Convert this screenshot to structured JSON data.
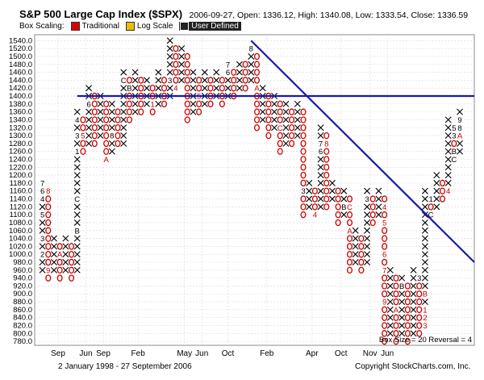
{
  "header": {
    "title": "S&P 500 Large Cap Index ($SPX)",
    "ohlc": "2006-09-27, Open: 1336.12, High: 1340.08, Low: 1333.54, Close: 1336.59"
  },
  "scaling": {
    "label": "Box Scaling:",
    "options": [
      {
        "label": "Traditional",
        "color": "#dd0000",
        "active": false
      },
      {
        "label": "Log Scale",
        "color": "#e8c000",
        "active": false
      },
      {
        "label": "User Defined",
        "color": "#222222",
        "active": true
      }
    ]
  },
  "footer": {
    "date_range": "2 January 1998 - 27 September 2006",
    "copyright": "Copyright StockCharts.com, Inc."
  },
  "chart_data": {
    "type": "point-and-figure",
    "box_info": "Box Size = 20   Reversal = 4",
    "y_ticks": [
      780,
      800,
      820,
      840,
      860,
      880,
      900,
      920,
      940,
      960,
      980,
      1000,
      1020,
      1040,
      1060,
      1080,
      1100,
      1120,
      1140,
      1160,
      1180,
      1200,
      1220,
      1240,
      1260,
      1280,
      1300,
      1320,
      1340,
      1360,
      1380,
      1400,
      1420,
      1440,
      1460,
      1480,
      1500,
      1520,
      1540
    ],
    "ylim": [
      770,
      1555
    ],
    "x_labels": [
      {
        "label": "Sep",
        "col": 2.7
      },
      {
        "label": "Jun",
        "col": 7.5
      },
      {
        "label": "Sep",
        "col": 10.5
      },
      {
        "label": "Feb",
        "col": 16.5
      },
      {
        "label": "May",
        "col": 24.5
      },
      {
        "label": "Jun",
        "col": 27.5
      },
      {
        "label": "Oct",
        "col": 32
      },
      {
        "label": "Feb",
        "col": 38.7
      },
      {
        "label": "Apr",
        "col": 46.5
      },
      {
        "label": "Oct",
        "col": 51.5
      },
      {
        "label": "Nov",
        "col": 56.5
      },
      {
        "label": "Jun",
        "col": 59.5
      }
    ],
    "columns": [
      {
        "type": "X",
        "low": 960,
        "high": 1180
      },
      {
        "type": "O",
        "low": 940,
        "high": 1160
      },
      {
        "type": "X",
        "low": 960,
        "high": 1040
      },
      {
        "type": "O",
        "low": 940,
        "high": 1020
      },
      {
        "type": "X",
        "low": 960,
        "high": 1040
      },
      {
        "type": "O",
        "low": 940,
        "high": 1020
      },
      {
        "type": "X",
        "low": 960,
        "high": 1360
      },
      {
        "type": "O",
        "low": 1260,
        "high": 1340
      },
      {
        "type": "X",
        "low": 1280,
        "high": 1420
      },
      {
        "type": "O",
        "low": 1280,
        "high": 1400
      },
      {
        "type": "X",
        "low": 1300,
        "high": 1400
      },
      {
        "type": "O",
        "low": 1240,
        "high": 1380
      },
      {
        "type": "X",
        "low": 1260,
        "high": 1380
      },
      {
        "type": "O",
        "low": 1280,
        "high": 1360
      },
      {
        "type": "X",
        "low": 1280,
        "high": 1460
      },
      {
        "type": "O",
        "low": 1340,
        "high": 1440
      },
      {
        "type": "X",
        "low": 1360,
        "high": 1460
      },
      {
        "type": "O",
        "low": 1360,
        "high": 1440
      },
      {
        "type": "X",
        "low": 1380,
        "high": 1440
      },
      {
        "type": "O",
        "low": 1360,
        "high": 1420
      },
      {
        "type": "X",
        "low": 1380,
        "high": 1460
      },
      {
        "type": "O",
        "low": 1380,
        "high": 1440
      },
      {
        "type": "X",
        "low": 1400,
        "high": 1540
      },
      {
        "type": "O",
        "low": 1420,
        "high": 1520
      },
      {
        "type": "X",
        "low": 1440,
        "high": 1520
      },
      {
        "type": "O",
        "low": 1340,
        "high": 1500
      },
      {
        "type": "X",
        "low": 1360,
        "high": 1460
      },
      {
        "type": "O",
        "low": 1360,
        "high": 1440
      },
      {
        "type": "X",
        "low": 1380,
        "high": 1460
      },
      {
        "type": "O",
        "low": 1380,
        "high": 1440
      },
      {
        "type": "X",
        "low": 1400,
        "high": 1460
      },
      {
        "type": "O",
        "low": 1380,
        "high": 1440
      },
      {
        "type": "X",
        "low": 1400,
        "high": 1480
      },
      {
        "type": "O",
        "low": 1400,
        "high": 1460
      },
      {
        "type": "X",
        "low": 1420,
        "high": 1480
      },
      {
        "type": "O",
        "low": 1420,
        "high": 1480
      },
      {
        "type": "X",
        "low": 1440,
        "high": 1520
      },
      {
        "type": "O",
        "low": 1320,
        "high": 1500
      },
      {
        "type": "X",
        "low": 1340,
        "high": 1420
      },
      {
        "type": "O",
        "low": 1300,
        "high": 1400
      },
      {
        "type": "X",
        "low": 1320,
        "high": 1400
      },
      {
        "type": "O",
        "low": 1260,
        "high": 1380
      },
      {
        "type": "X",
        "low": 1280,
        "high": 1380
      },
      {
        "type": "O",
        "low": 1280,
        "high": 1360
      },
      {
        "type": "X",
        "low": 1300,
        "high": 1380
      },
      {
        "type": "O",
        "low": 1100,
        "high": 1360
      },
      {
        "type": "X",
        "low": 1120,
        "high": 1180
      },
      {
        "type": "O",
        "low": 1100,
        "high": 1160
      },
      {
        "type": "X",
        "low": 1120,
        "high": 1320
      },
      {
        "type": "O",
        "low": 1120,
        "high": 1300
      },
      {
        "type": "X",
        "low": 1140,
        "high": 1180
      },
      {
        "type": "O",
        "low": 1080,
        "high": 1160
      },
      {
        "type": "X",
        "low": 1100,
        "high": 1160
      },
      {
        "type": "O",
        "low": 960,
        "high": 1140
      },
      {
        "type": "X",
        "low": 980,
        "high": 1060
      },
      {
        "type": "O",
        "low": 960,
        "high": 1040
      },
      {
        "type": "X",
        "low": 980,
        "high": 1160
      },
      {
        "type": "O",
        "low": 1080,
        "high": 1140
      },
      {
        "type": "X",
        "low": 1100,
        "high": 1160
      },
      {
        "type": "O",
        "low": 780,
        "high": 1140
      },
      {
        "type": "X",
        "low": 800,
        "high": 960
      },
      {
        "type": "O",
        "low": 780,
        "high": 940
      },
      {
        "type": "X",
        "low": 800,
        "high": 940
      },
      {
        "type": "O",
        "low": 780,
        "high": 920
      },
      {
        "type": "X",
        "low": 800,
        "high": 960
      },
      {
        "type": "O",
        "low": 800,
        "high": 940
      },
      {
        "type": "X",
        "low": 820,
        "high": 1160
      },
      {
        "type": "O",
        "low": 1100,
        "high": 1140
      },
      {
        "type": "X",
        "low": 1120,
        "high": 1200
      },
      {
        "type": "O",
        "low": 1140,
        "high": 1180
      },
      {
        "type": "X",
        "low": 1160,
        "high": 1340
      },
      {
        "type": "O",
        "low": 1240,
        "high": 1320
      },
      {
        "type": "X",
        "low": 1260,
        "high": 1360
      }
    ],
    "month_markers": [
      {
        "col": 0,
        "value": 1180,
        "label": "7",
        "color": "black"
      },
      {
        "col": 0,
        "value": 1160,
        "label": "6",
        "color": "black"
      },
      {
        "col": 0,
        "value": 1140,
        "label": "4",
        "color": "black"
      },
      {
        "col": 0,
        "value": 1100,
        "label": "5",
        "color": "black"
      },
      {
        "col": 0,
        "value": 1040,
        "label": "3",
        "color": "black"
      },
      {
        "col": 0,
        "value": 1000,
        "label": "2",
        "color": "black"
      },
      {
        "col": 1,
        "value": 1160,
        "label": "8",
        "color": "red"
      },
      {
        "col": 1,
        "value": 960,
        "label": "9",
        "color": "red"
      },
      {
        "col": 3,
        "value": 1000,
        "label": "A",
        "color": "red"
      },
      {
        "col": 6,
        "value": 1140,
        "label": "C",
        "color": "black"
      },
      {
        "col": 6,
        "value": 1060,
        "label": "B",
        "color": "black"
      },
      {
        "col": 6,
        "value": 1260,
        "label": "1",
        "color": "black"
      },
      {
        "col": 6,
        "value": 1300,
        "label": "3",
        "color": "black"
      },
      {
        "col": 6,
        "value": 1340,
        "label": "4",
        "color": "black"
      },
      {
        "col": 7,
        "value": 1300,
        "label": "5",
        "color": "red"
      },
      {
        "col": 8,
        "value": 1380,
        "label": "6",
        "color": "black"
      },
      {
        "col": 11,
        "value": 1240,
        "label": "A",
        "color": "red"
      },
      {
        "col": 12,
        "value": 1300,
        "label": "8",
        "color": "black"
      },
      {
        "col": 14,
        "value": 1440,
        "label": "C",
        "color": "black"
      },
      {
        "col": 15,
        "value": 1420,
        "label": "B",
        "color": "black"
      },
      {
        "col": 19,
        "value": 1380,
        "label": "1",
        "color": "red"
      },
      {
        "col": 22,
        "value": 1440,
        "label": "3",
        "color": "black"
      },
      {
        "col": 23,
        "value": 1420,
        "label": "4",
        "color": "red"
      },
      {
        "col": 27,
        "value": 1400,
        "label": "5",
        "color": "red"
      },
      {
        "col": 32,
        "value": 1480,
        "label": "7",
        "color": "black"
      },
      {
        "col": 32,
        "value": 1460,
        "label": "6",
        "color": "black"
      },
      {
        "col": 36,
        "value": 1520,
        "label": "8",
        "color": "black"
      },
      {
        "col": 37,
        "value": 1420,
        "label": "A",
        "color": "red"
      },
      {
        "col": 41,
        "value": 1320,
        "label": "C",
        "color": "red"
      },
      {
        "col": 45,
        "value": 1160,
        "label": "3",
        "color": "black"
      },
      {
        "col": 47,
        "value": 1100,
        "label": "4",
        "color": "red"
      },
      {
        "col": 48,
        "value": 1280,
        "label": "7",
        "color": "black"
      },
      {
        "col": 48,
        "value": 1260,
        "label": "6",
        "color": "black"
      },
      {
        "col": 49,
        "value": 1280,
        "label": "8",
        "color": "red"
      },
      {
        "col": 52,
        "value": 1120,
        "label": "B",
        "color": "black"
      },
      {
        "col": 53,
        "value": 1120,
        "label": "C",
        "color": "red"
      },
      {
        "col": 53,
        "value": 1060,
        "label": "A",
        "color": "red"
      },
      {
        "col": 56,
        "value": 1140,
        "label": "3",
        "color": "black"
      },
      {
        "col": 59,
        "value": 1120,
        "label": "4",
        "color": "red"
      },
      {
        "col": 59,
        "value": 1080,
        "label": "5",
        "color": "red"
      },
      {
        "col": 59,
        "value": 1000,
        "label": "6",
        "color": "red"
      },
      {
        "col": 59,
        "value": 960,
        "label": "7",
        "color": "red"
      },
      {
        "col": 59,
        "value": 880,
        "label": "9",
        "color": "red"
      },
      {
        "col": 61,
        "value": 860,
        "label": "A",
        "color": "red"
      },
      {
        "col": 62,
        "value": 920,
        "label": "B",
        "color": "black"
      },
      {
        "col": 65,
        "value": 940,
        "label": "3",
        "color": "black"
      },
      {
        "col": 66,
        "value": 900,
        "label": "B",
        "color": "red"
      },
      {
        "col": 66,
        "value": 860,
        "label": "1",
        "color": "red"
      },
      {
        "col": 66,
        "value": 840,
        "label": "2",
        "color": "red"
      },
      {
        "col": 66,
        "value": 820,
        "label": "3",
        "color": "red"
      },
      {
        "col": 67,
        "value": 1140,
        "label": "1",
        "color": "black"
      },
      {
        "col": 67,
        "value": 1100,
        "label": "C",
        "color": "black"
      },
      {
        "col": 67,
        "value": 1060,
        "label": "B",
        "color": "black"
      },
      {
        "col": 67,
        "value": 1020,
        "label": "A",
        "color": "black"
      },
      {
        "col": 68,
        "value": 1100,
        "label": "5",
        "color": "red"
      },
      {
        "col": 69,
        "value": 1200,
        "label": "7",
        "color": "black"
      },
      {
        "col": 70,
        "value": 1160,
        "label": "4",
        "color": "red"
      },
      {
        "col": 71,
        "value": 1320,
        "label": "5",
        "color": "black"
      },
      {
        "col": 71,
        "value": 1300,
        "label": "3",
        "color": "black"
      },
      {
        "col": 71,
        "value": 1260,
        "label": "B",
        "color": "black"
      },
      {
        "col": 71,
        "value": 1240,
        "label": "C",
        "color": "black"
      },
      {
        "col": 71,
        "value": 1220,
        "label": "1",
        "color": "black"
      },
      {
        "col": 72,
        "value": 1340,
        "label": "9",
        "color": "black"
      },
      {
        "col": 72,
        "value": 1320,
        "label": "8",
        "color": "black"
      },
      {
        "col": 72,
        "value": 1300,
        "label": "A",
        "color": "red"
      }
    ],
    "trendlines": [
      {
        "name": "horizontal-support",
        "color": "#1a1aa8",
        "start": {
          "col": 6,
          "value": 1400
        },
        "end": {
          "col": 75,
          "value": 1400
        }
      },
      {
        "name": "bearish-resistance",
        "color": "#1a1aa8",
        "start": {
          "col": 36,
          "value": 1540
        },
        "end": {
          "col": 75,
          "value": 980
        }
      }
    ]
  }
}
